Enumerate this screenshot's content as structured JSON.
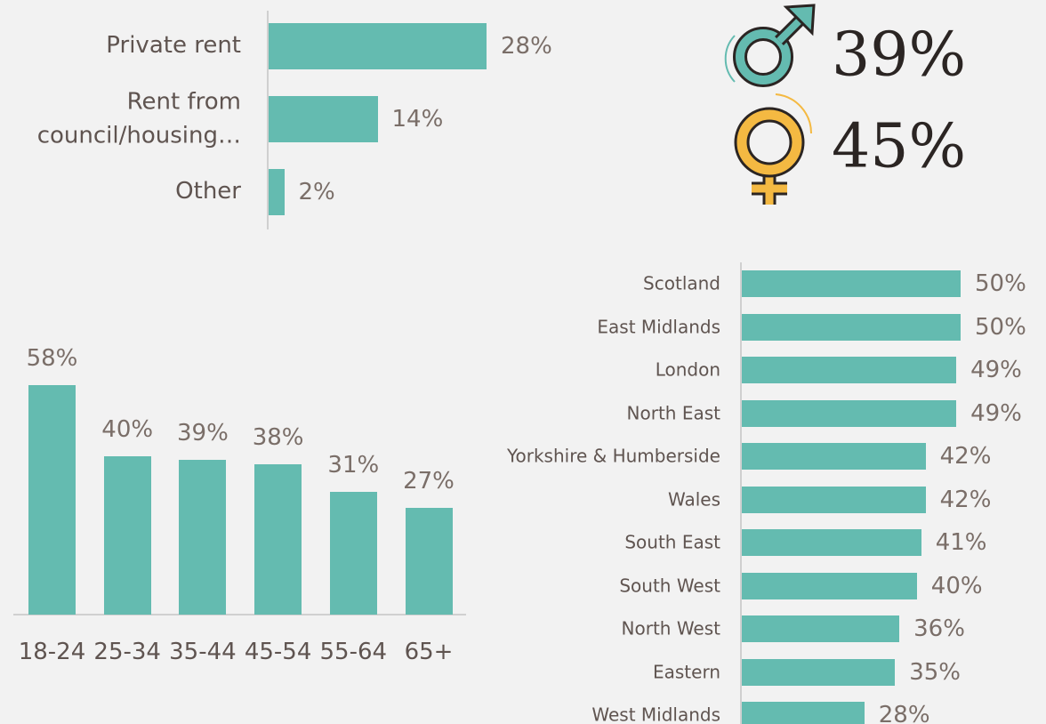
{
  "chart_data": [
    {
      "type": "bar",
      "orientation": "horizontal",
      "color": "#64bbb0",
      "categories": [
        "Private rent",
        "Rent from council/housing…",
        "Other"
      ],
      "values": [
        28,
        14,
        2
      ],
      "value_labels": [
        "28%",
        "14%",
        "2%"
      ]
    },
    {
      "type": "stat",
      "values": [
        39,
        45
      ],
      "value_labels": [
        "39%",
        "45%"
      ]
    },
    {
      "type": "bar",
      "orientation": "vertical",
      "color": "#64bbb0",
      "categories": [
        "18-24",
        "25-34",
        "35-44",
        "45-54",
        "55-64",
        "65+"
      ],
      "values": [
        58,
        40,
        39,
        38,
        31,
        27
      ],
      "value_labels": [
        "58%",
        "40%",
        "39%",
        "38%",
        "31%",
        "27%"
      ]
    },
    {
      "type": "bar",
      "orientation": "horizontal",
      "color": "#64bbb0",
      "categories": [
        "Scotland",
        "East Midlands",
        "London",
        "North East",
        "Yorkshire & Humberside",
        "Wales",
        "South East",
        "South West",
        "North West",
        "Eastern",
        "West Midlands"
      ],
      "values": [
        50,
        50,
        49,
        49,
        42,
        42,
        41,
        40,
        36,
        35,
        28
      ],
      "value_labels": [
        "50%",
        "50%",
        "49%",
        "49%",
        "42%",
        "42%",
        "41%",
        "40%",
        "36%",
        "35%",
        "28%"
      ]
    }
  ]
}
